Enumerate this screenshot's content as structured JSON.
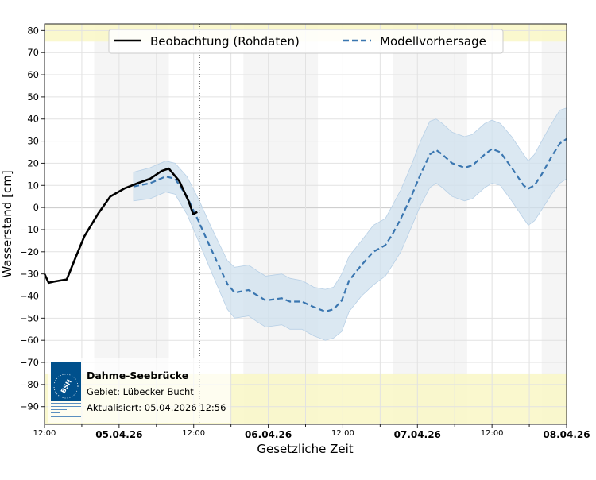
{
  "chart_data": {
    "type": "line",
    "xlabel": "Gesetzliche Zeit",
    "ylabel": "Wasserstand [cm]",
    "xlim": [
      "2026-04-04T12:00",
      "2026-04-08T00:00"
    ],
    "ylim": [
      -98,
      83
    ],
    "yticks": [
      80,
      70,
      60,
      50,
      40,
      30,
      20,
      10,
      0,
      -10,
      -20,
      -30,
      -40,
      -50,
      -60,
      -70,
      -80,
      -90
    ],
    "xticks": [
      {
        "t": "2026-04-04T12:00",
        "label": "12:00",
        "major": false
      },
      {
        "t": "2026-04-05T00:00",
        "label": "05.04.26",
        "major": true
      },
      {
        "t": "2026-04-05T12:00",
        "label": "12:00",
        "major": false
      },
      {
        "t": "2026-04-06T00:00",
        "label": "06.04.26",
        "major": true
      },
      {
        "t": "2026-04-06T12:00",
        "label": "12:00",
        "major": false
      },
      {
        "t": "2026-04-07T00:00",
        "label": "07.04.26",
        "major": true
      },
      {
        "t": "2026-04-07T12:00",
        "label": "12:00",
        "major": false
      },
      {
        "t": "2026-04-08T00:00",
        "label": "08.04.26",
        "major": true
      }
    ],
    "grid": true,
    "legend_placement": "top-center",
    "night_bands": [
      [
        "2026-04-04T20:00",
        "2026-04-05T08:00"
      ],
      [
        "2026-04-05T20:00",
        "2026-04-06T08:00"
      ],
      [
        "2026-04-06T20:00",
        "2026-04-07T08:00"
      ],
      [
        "2026-04-07T20:00",
        "2026-04-08T00:00"
      ]
    ],
    "warning_zones": [
      [
        75,
        83
      ],
      [
        -98,
        -75
      ]
    ],
    "update_marker": "2026-04-05T12:56",
    "colors": {
      "observation": "#000000",
      "forecast": "#3a76b0",
      "band": "#cfe0ee",
      "warning": "#f9f7c6",
      "night": "#f5f5f5"
    },
    "series": [
      {
        "name": "Beobachtung (Rohdaten)",
        "style": "solid",
        "points": [
          [
            "2026-04-04T12:00",
            -30
          ],
          [
            "2026-04-04T12:40",
            -34
          ],
          [
            "2026-04-04T13:30",
            -33.5
          ],
          [
            "2026-04-04T14:30",
            -33
          ],
          [
            "2026-04-04T15:35",
            -32.5
          ],
          [
            "2026-04-04T17:05",
            -22
          ],
          [
            "2026-04-04T18:25",
            -13
          ],
          [
            "2026-04-04T20:35",
            -3
          ],
          [
            "2026-04-04T22:35",
            5
          ],
          [
            "2026-04-05T00:50",
            8.6
          ],
          [
            "2026-04-05T03:00",
            11
          ],
          [
            "2026-04-05T05:00",
            13
          ],
          [
            "2026-04-05T06:50",
            16.5
          ],
          [
            "2026-04-05T08:00",
            17.6
          ],
          [
            "2026-04-05T09:40",
            12
          ],
          [
            "2026-04-05T11:10",
            3
          ],
          [
            "2026-04-05T11:55",
            -3
          ],
          [
            "2026-04-05T12:35",
            -2
          ]
        ]
      },
      {
        "name": "Modellvorhersage",
        "style": "dashed",
        "points": [
          [
            "2026-04-05T02:20",
            9.5,
            3,
            16
          ],
          [
            "2026-04-05T05:00",
            11,
            4,
            18
          ],
          [
            "2026-04-05T07:30",
            14,
            7,
            21
          ],
          [
            "2026-04-05T09:00",
            13,
            6,
            20
          ],
          [
            "2026-04-05T10:55",
            5,
            -3,
            14
          ],
          [
            "2026-04-05T12:45",
            -6,
            -15,
            4
          ],
          [
            "2026-04-05T14:50",
            -19,
            -29,
            -9
          ],
          [
            "2026-04-05T17:25",
            -34.5,
            -46,
            -24
          ],
          [
            "2026-04-05T18:35",
            -38.5,
            -50,
            -27
          ],
          [
            "2026-04-05T20:50",
            -37.3,
            -49,
            -26
          ],
          [
            "2026-04-05T22:25",
            -40,
            -52,
            -29
          ],
          [
            "2026-04-05T23:35",
            -42,
            -54,
            -31
          ],
          [
            "2026-04-06T02:10",
            -41,
            -53,
            -30
          ],
          [
            "2026-04-06T03:30",
            -42.5,
            -55,
            -32
          ],
          [
            "2026-04-06T05:25",
            -42.5,
            -55,
            -33
          ],
          [
            "2026-04-06T07:20",
            -45,
            -58,
            -36
          ],
          [
            "2026-04-06T09:10",
            -47,
            -60,
            -37
          ],
          [
            "2026-04-06T10:30",
            -46,
            -59,
            -36
          ],
          [
            "2026-04-06T11:50",
            -42,
            -56,
            -30
          ],
          [
            "2026-04-06T13:00",
            -33,
            -47,
            -22
          ],
          [
            "2026-04-06T15:00",
            -26,
            -40,
            -15
          ],
          [
            "2026-04-06T16:55",
            -20,
            -35,
            -8
          ],
          [
            "2026-04-06T18:50",
            -17,
            -31,
            -5
          ],
          [
            "2026-04-06T20:00",
            -12,
            -26,
            1
          ],
          [
            "2026-04-06T21:20",
            -5,
            -20,
            8
          ],
          [
            "2026-04-06T23:00",
            5,
            -9,
            19
          ],
          [
            "2026-04-07T00:30",
            15,
            1,
            30
          ],
          [
            "2026-04-07T02:00",
            24,
            9,
            39
          ],
          [
            "2026-04-07T03:00",
            26,
            11,
            40
          ],
          [
            "2026-04-07T04:00",
            24,
            9,
            38
          ],
          [
            "2026-04-07T05:35",
            20,
            5,
            34
          ],
          [
            "2026-04-07T07:35",
            18,
            3,
            32
          ],
          [
            "2026-04-07T08:50",
            19,
            4,
            33
          ],
          [
            "2026-04-07T10:50",
            24,
            9,
            38
          ],
          [
            "2026-04-07T12:00",
            26.5,
            11,
            39.5
          ],
          [
            "2026-04-07T13:20",
            25,
            10,
            38
          ],
          [
            "2026-04-07T15:10",
            18,
            3,
            32
          ],
          [
            "2026-04-07T17:05",
            10,
            -5,
            24
          ],
          [
            "2026-04-07T17:50",
            8.5,
            -8,
            21
          ],
          [
            "2026-04-07T18:50",
            10,
            -6,
            24
          ],
          [
            "2026-04-07T20:00",
            15,
            -1,
            30
          ],
          [
            "2026-04-07T21:35",
            23,
            6,
            38
          ],
          [
            "2026-04-07T22:55",
            29,
            11,
            44
          ],
          [
            "2026-04-08T00:00",
            31,
            13,
            45
          ]
        ]
      }
    ]
  },
  "info_box": {
    "station": "Dahme-Seebrücke",
    "area": "Gebiet: Lübecker Bucht",
    "updated": "Aktualisiert: 05.04.2026 12:56",
    "logo_text": "BSH BUNDESAMT FÜR SEESCHIFFFAHRT UND HYDROGRAPHIE",
    "logo_color": "#00508c"
  }
}
